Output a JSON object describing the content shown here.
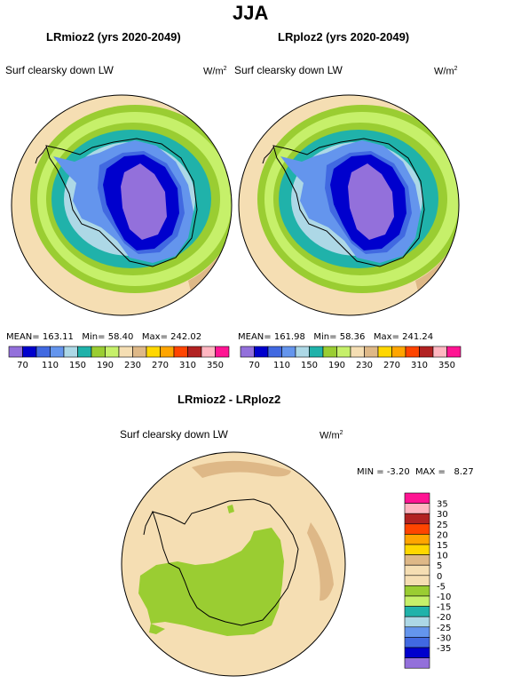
{
  "title": "JJA",
  "colors": {
    "palette": [
      "#9370db",
      "#0000cd",
      "#4169e1",
      "#6495ed",
      "#add8e6",
      "#20b2aa",
      "#9acd32",
      "#c6f06a",
      "#f5deb3",
      "#deb887",
      "#ffd700",
      "#ffa500",
      "#ff4500",
      "#b22222",
      "#ffb6c1",
      "#ff1493"
    ],
    "land_outline": "#000000",
    "map_border": "#000000"
  },
  "panel_left": {
    "title": "LRmioz2 (yrs 2020-2049)",
    "variable": "Surf clearsky down LW",
    "units": "W/m",
    "units_exp": "2",
    "mean_label": "MEAN=",
    "mean": "163.11",
    "min_label": "Min=",
    "min": "58.40",
    "max_label": "Max=",
    "max": "242.02"
  },
  "panel_right": {
    "title": "LRploz2 (yrs 2020-2049)",
    "variable": "Surf clearsky down LW",
    "units": "W/m",
    "units_exp": "2",
    "mean_label": "MEAN=",
    "mean": "161.98",
    "min_label": "Min=",
    "min": "58.36",
    "max_label": "Max=",
    "max": "241.24"
  },
  "colorbar_ticks": [
    "70",
    "110",
    "150",
    "190",
    "230",
    "270",
    "310",
    "350"
  ],
  "panel_diff": {
    "title": "LRmioz2 - LRploz2",
    "variable": "Surf clearsky down LW",
    "units": "W/m",
    "units_exp": "2",
    "min_label": "MIN =",
    "min": "-3.20",
    "max_label": "MAX =",
    "max": "8.27"
  },
  "diff_colorbar": {
    "labels": [
      "35",
      "30",
      "25",
      "20",
      "15",
      "10",
      "5",
      "0",
      "-5",
      "-10",
      "-15",
      "-20",
      "-25",
      "-30",
      "-35"
    ],
    "colors": [
      "#ff1493",
      "#ffb6c1",
      "#b22222",
      "#ff4500",
      "#ffa500",
      "#ffd700",
      "#deb887",
      "#f5deb3",
      "#f5deb3",
      "#9acd32",
      "#c6f06a",
      "#20b2aa",
      "#add8e6",
      "#6495ed",
      "#4169e1",
      "#0000cd",
      "#9370db"
    ]
  }
}
